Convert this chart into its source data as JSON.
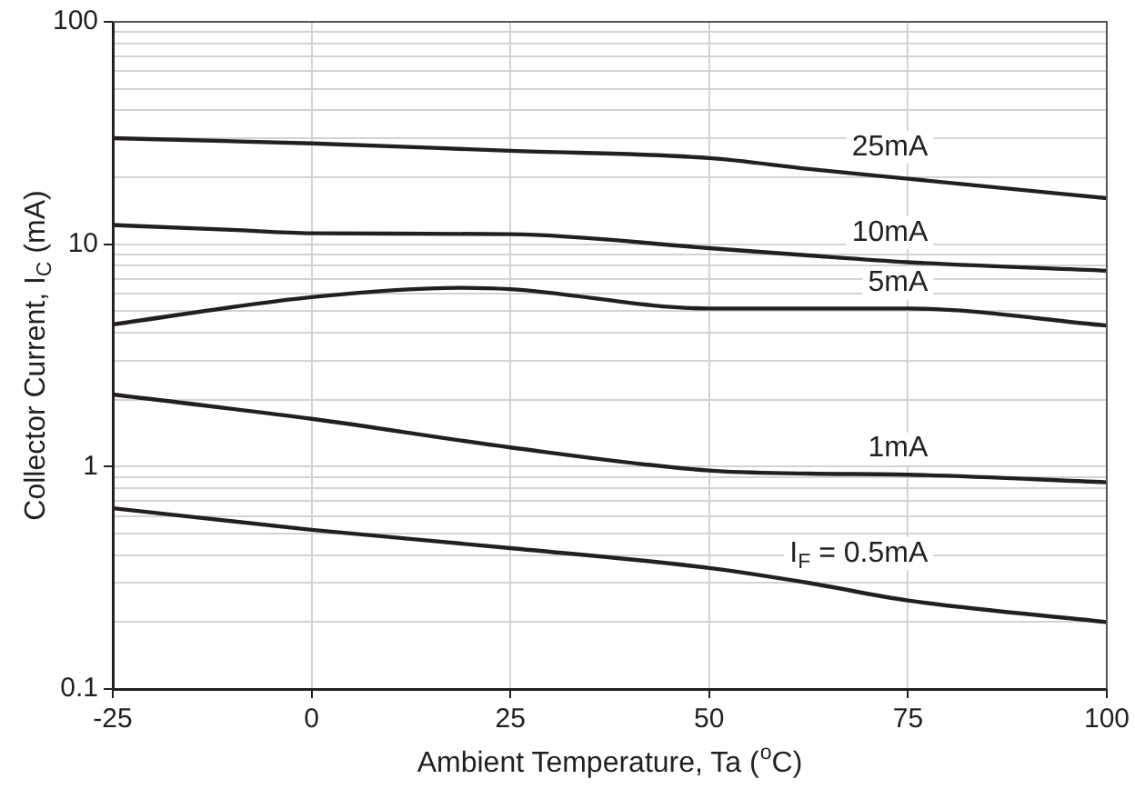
{
  "chart_data": {
    "type": "line",
    "xlabel": "Ambient Temperature, Ta ($^{o}$C)",
    "ylabel": "Collector Current, I$_{C}$ (mA)",
    "xlim": [
      -25,
      100
    ],
    "xticks": [
      -25,
      0,
      25,
      50,
      75,
      100
    ],
    "ylim": [
      0.1,
      100
    ],
    "log": "y",
    "yticks": [
      0.1,
      {
        "value": 0.2,
        "label": null
      },
      {
        "value": 0.3,
        "label": null
      },
      {
        "value": 0.4,
        "label": null
      },
      {
        "value": 0.5,
        "label": null
      },
      {
        "value": 0.6,
        "label": null
      },
      {
        "value": 0.7,
        "label": null
      },
      {
        "value": 0.8,
        "label": null
      },
      {
        "value": 0.9,
        "label": null
      },
      1,
      {
        "value": 2,
        "label": null
      },
      {
        "value": 3,
        "label": null
      },
      {
        "value": 4,
        "label": null
      },
      {
        "value": 5,
        "label": null
      },
      {
        "value": 6,
        "label": null
      },
      {
        "value": 7,
        "label": null
      },
      {
        "value": 8,
        "label": null
      },
      {
        "value": 9,
        "label": null
      },
      10,
      {
        "value": 20,
        "label": null
      },
      {
        "value": 30,
        "label": null
      },
      {
        "value": 40,
        "label": null
      },
      {
        "value": 50,
        "label": null
      },
      {
        "value": 60,
        "label": null
      },
      {
        "value": 70,
        "label": null
      },
      {
        "value": 80,
        "label": null
      },
      {
        "value": 90,
        "label": null
      },
      100
    ],
    "grid": true,
    "legend": false,
    "marker": "none",
    "line_style": "solid",
    "series": [
      {
        "name": "25mA",
        "color": "#231f20",
        "x": [
          -25,
          0,
          25,
          50,
          62.5,
          75,
          100
        ],
        "values": [
          30,
          28.4,
          26.3,
          24.4,
          21.8,
          19.7,
          16.1
        ]
      },
      {
        "name": "10mA",
        "color": "#231f20",
        "x": [
          -25,
          -10,
          0,
          25,
          50,
          62.5,
          75,
          100
        ],
        "values": [
          12.2,
          11.6,
          11.2,
          11.1,
          9.6,
          8.9,
          8.3,
          7.6
        ]
      },
      {
        "name": "5mA",
        "color": "#231f20",
        "x": [
          -25,
          0,
          18.6,
          25,
          50,
          75,
          100
        ],
        "values": [
          4.36,
          5.78,
          6.37,
          6.28,
          5.14,
          5.14,
          4.31
        ]
      },
      {
        "name": "1mA",
        "color": "#231f20",
        "x": [
          -25,
          0,
          25,
          50,
          62.5,
          75,
          100
        ],
        "values": [
          2.11,
          1.64,
          1.22,
          0.96,
          0.93,
          0.92,
          0.85
        ]
      },
      {
        "name": "I$_{F}$ = 0.5mA",
        "color": "#231f20",
        "x": [
          -25,
          0,
          25,
          50,
          62.5,
          75,
          100
        ],
        "values": [
          0.65,
          0.52,
          0.43,
          0.35,
          0.3,
          0.25,
          0.2
        ]
      }
    ]
  }
}
